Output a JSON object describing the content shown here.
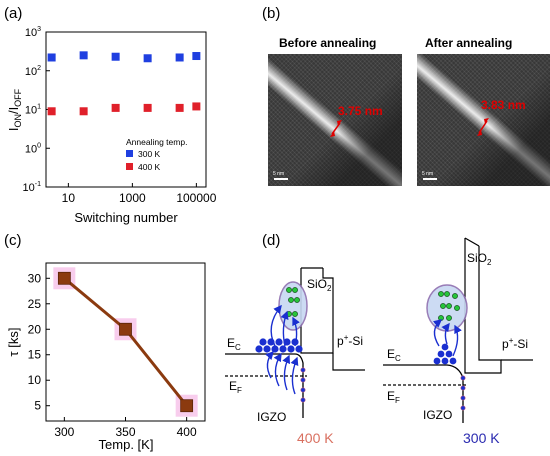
{
  "panels": {
    "a": "(a)",
    "b": "(b)",
    "c": "(c)",
    "d": "(d)"
  },
  "chart_a": {
    "type": "scatter",
    "xlabel": "Switching number",
    "ylabel": "I",
    "ylabel_sub_on": "ON",
    "ylabel_sep": "/I",
    "ylabel_sub_off": "OFF",
    "x_scale": "log",
    "y_scale": "log",
    "xlim": [
      2,
      200000
    ],
    "ylim": [
      0.1,
      1000
    ],
    "x_ticks": [
      {
        "v": 10,
        "label": "10"
      },
      {
        "v": 1000,
        "label": "1000"
      },
      {
        "v": 100000,
        "label": "100000"
      }
    ],
    "y_ticks": [
      {
        "v": 0.1,
        "base": "10",
        "exp": "-1"
      },
      {
        "v": 1,
        "base": "10",
        "exp": "0"
      },
      {
        "v": 10,
        "base": "10",
        "exp": "1"
      },
      {
        "v": 100,
        "base": "10",
        "exp": "2"
      },
      {
        "v": 1000,
        "base": "10",
        "exp": "3"
      }
    ],
    "legend_title": "Annealing temp.",
    "legend_position": "lower-right",
    "series": [
      {
        "name": "300 K",
        "color": "#1f3fe0",
        "x": [
          3,
          30,
          300,
          3000,
          30000,
          100000
        ],
        "y": [
          220,
          250,
          230,
          210,
          220,
          240
        ]
      },
      {
        "name": "400 K",
        "color": "#e0202a",
        "x": [
          3,
          30,
          300,
          3000,
          30000,
          100000
        ],
        "y": [
          9,
          9,
          11,
          11,
          11,
          12
        ]
      }
    ]
  },
  "tem": {
    "before_title": "Before annealing",
    "after_title": "After annealing",
    "before_value": "3.75 nm",
    "after_value": "3.83 nm",
    "scale_label": "5 nm"
  },
  "chart_c": {
    "type": "line",
    "xlabel": "Temp. [K]",
    "ylabel": "τ [ks]",
    "xlim": [
      285,
      415
    ],
    "ylim": [
      2,
      33
    ],
    "x_ticks": [
      300,
      350,
      400
    ],
    "y_ticks": [
      5,
      10,
      15,
      20,
      25,
      30
    ],
    "x": [
      300,
      350,
      400
    ],
    "y": [
      30,
      20,
      5
    ],
    "line_color": "#8b3a0f",
    "marker_color": "#8b3a0f",
    "halo_color": "#f7c4ea"
  },
  "band": {
    "left": {
      "sio2": "SiO",
      "sio2_sub": "2",
      "psi": "p",
      "psi_sup": "+",
      "psi_rest": "-Si",
      "ec": "E",
      "ec_sub": "C",
      "ef": "E",
      "ef_sub": "F",
      "igzo": "IGZO",
      "temp": "400 K",
      "temp_color": "#d97060"
    },
    "right": {
      "sio2": "SiO",
      "sio2_sub": "2",
      "psi": "p",
      "psi_sup": "+",
      "psi_rest": "-Si",
      "ec": "E",
      "ec_sub": "C",
      "ef": "E",
      "ef_sub": "F",
      "igzo": "IGZO",
      "temp": "300 K",
      "temp_color": "#2a2ab0"
    }
  }
}
